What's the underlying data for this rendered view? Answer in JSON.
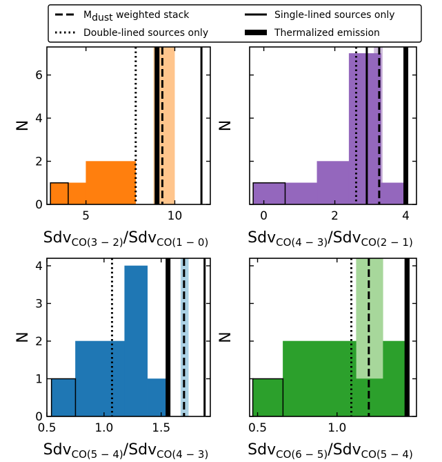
{
  "legend": {
    "entries": [
      {
        "id": "stack",
        "label_main": "M",
        "label_sub": "dust",
        "label_rest": " weighted stack",
        "style": "dashed"
      },
      {
        "id": "single",
        "label": "Single-lined sources only",
        "style": "solid"
      },
      {
        "id": "double",
        "label": "Double-lined sources only",
        "style": "dotted"
      },
      {
        "id": "thermal",
        "label": "Thermalized emission",
        "style": "thick"
      }
    ],
    "placement": "top"
  },
  "chart_data": [
    {
      "type": "bar",
      "panel": "top-left",
      "color": "#ff7f0e",
      "band_color": "#ffbb78",
      "xlabel": {
        "base": "Sdv",
        "num_sub": "CO(3 − 2)",
        "slash": "/Sdv",
        "den_sub": "CO(1 − 0)"
      },
      "ylabel": "N",
      "xlim": [
        2.8,
        12.0
      ],
      "ylim": [
        0,
        7.3
      ],
      "xticks": [
        {
          "v": 5,
          "label": "5"
        },
        {
          "v": 10,
          "label": "10"
        }
      ],
      "yticks": [
        {
          "v": 0,
          "label": "0"
        },
        {
          "v": 2,
          "label": "2"
        },
        {
          "v": 4,
          "label": "4"
        },
        {
          "v": 6,
          "label": "6"
        }
      ],
      "bars": [
        {
          "x0": 3.0,
          "x1": 4.0,
          "y": 1
        },
        {
          "x0": 4.0,
          "x1": 5.0,
          "y": 1
        },
        {
          "x0": 5.0,
          "x1": 7.8,
          "y": 2
        }
      ],
      "single_bar": {
        "x0": 3.0,
        "x1": 4.0,
        "y": 1
      },
      "stack_band": [
        8.8,
        10.0
      ],
      "lines": {
        "double": 7.8,
        "single": 11.5,
        "stack": 9.3,
        "thermal": 9.0
      }
    },
    {
      "type": "bar",
      "panel": "top-right",
      "color": "#9467bd",
      "band_color": "#c5b0d5",
      "xlabel": {
        "base": "Sdv",
        "num_sub": "CO(4 − 3)",
        "slash": "/Sdv",
        "den_sub": "CO(2 − 1)"
      },
      "ylabel": "N",
      "xlim": [
        -0.4,
        4.3
      ],
      "ylim": [
        0,
        7.3
      ],
      "xticks": [
        {
          "v": 0,
          "label": "0"
        },
        {
          "v": 2,
          "label": "2"
        },
        {
          "v": 4,
          "label": "4"
        }
      ],
      "yticks": [
        {
          "v": 0,
          "label": ""
        },
        {
          "v": 2,
          "label": ""
        },
        {
          "v": 4,
          "label": ""
        },
        {
          "v": 6,
          "label": ""
        }
      ],
      "bars": [
        {
          "x0": -0.3,
          "x1": 0.6,
          "y": 1
        },
        {
          "x0": 0.6,
          "x1": 1.5,
          "y": 1
        },
        {
          "x0": 1.5,
          "x1": 2.4,
          "y": 2
        },
        {
          "x0": 2.4,
          "x1": 3.3,
          "y": 7
        },
        {
          "x0": 3.3,
          "x1": 4.0,
          "y": 1
        }
      ],
      "single_bar": {
        "x0": -0.3,
        "x1": 0.6,
        "y": 1
      },
      "stack_band": [
        3.1,
        3.35
      ],
      "lines": {
        "double": 2.6,
        "single": 2.9,
        "stack": 3.25,
        "thermal": 4.0
      }
    },
    {
      "type": "bar",
      "panel": "bottom-left",
      "color": "#1f77b4",
      "band_color": "#9ecae1",
      "xlabel": {
        "base": "Sdv",
        "num_sub": "CO(5 − 4)",
        "slash": "/Sdv",
        "den_sub": "CO(4 − 3)"
      },
      "ylabel": "N",
      "xlim": [
        0.5,
        1.93
      ],
      "ylim": [
        0,
        4.2
      ],
      "xticks": [
        {
          "v": 0.5,
          "label": "0.5"
        },
        {
          "v": 1.0,
          "label": "1.0"
        },
        {
          "v": 1.5,
          "label": "1.5"
        }
      ],
      "yticks": [
        {
          "v": 0,
          "label": "0"
        },
        {
          "v": 1,
          "label": "1"
        },
        {
          "v": 2,
          "label": "2"
        },
        {
          "v": 3,
          "label": "3"
        },
        {
          "v": 4,
          "label": "4"
        }
      ],
      "bars": [
        {
          "x0": 0.54,
          "x1": 0.75,
          "y": 1
        },
        {
          "x0": 0.75,
          "x1": 1.18,
          "y": 2
        },
        {
          "x0": 1.18,
          "x1": 1.38,
          "y": 4
        },
        {
          "x0": 1.38,
          "x1": 1.55,
          "y": 1
        }
      ],
      "single_bar": {
        "x0": 0.54,
        "x1": 0.75,
        "y": 1
      },
      "stack_band": [
        1.67,
        1.74
      ],
      "lines": {
        "double": 1.07,
        "single": 1.88,
        "stack": 1.7,
        "thermal": 1.56
      }
    },
    {
      "type": "bar",
      "panel": "bottom-right",
      "color": "#2ca02c",
      "band_color": "#98d08a",
      "xlabel": {
        "base": "Sdv",
        "num_sub": "CO(6 − 5)",
        "slash": "/Sdv",
        "den_sub": "CO(5 − 4)"
      },
      "ylabel": "N",
      "xlim": [
        0.45,
        1.5
      ],
      "ylim": [
        0,
        4.2
      ],
      "xticks": [
        {
          "v": 0.5,
          "label": "0.5"
        },
        {
          "v": 1.0,
          "label": "1.0"
        }
      ],
      "yticks": [
        {
          "v": 0,
          "label": ""
        },
        {
          "v": 1,
          "label": ""
        },
        {
          "v": 2,
          "label": ""
        },
        {
          "v": 3,
          "label": ""
        },
        {
          "v": 4,
          "label": ""
        }
      ],
      "bars": [
        {
          "x0": 0.47,
          "x1": 0.66,
          "y": 1
        },
        {
          "x0": 0.66,
          "x1": 1.12,
          "y": 2
        },
        {
          "x0": 1.12,
          "x1": 1.29,
          "y": 1
        },
        {
          "x0": 1.29,
          "x1": 1.45,
          "y": 2
        }
      ],
      "single_bar": {
        "x0": 0.47,
        "x1": 0.66,
        "y": 1
      },
      "stack_band": [
        1.12,
        1.29
      ],
      "lines": {
        "double": 1.09,
        "single": 1.45,
        "stack": 1.2,
        "thermal": 1.44
      }
    }
  ]
}
